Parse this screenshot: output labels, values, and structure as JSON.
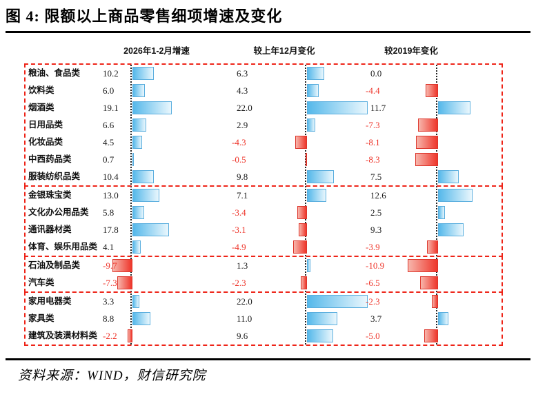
{
  "title": "图 4: 限额以上商品零售细项增速及变化",
  "source": "资料来源：WIND，财信研究院",
  "chart_data": {
    "type": "bar",
    "orientation": "horizontal",
    "unit": "percent",
    "columns": [
      "2026年1-2月增速",
      "较上年12月变化",
      "较2019年变化"
    ],
    "positive_value_color": "#1a1a1a",
    "negative_value_color": "#ee3328",
    "positive_bar_color": "#55b8ea",
    "negative_bar_color": "#ee352a",
    "frame_color": "#ee2418",
    "axis_at_zero": true,
    "groups": [
      {
        "rows": [
          {
            "label": "粮油、食品类",
            "values": [
              10.2,
              6.3,
              0.0
            ]
          },
          {
            "label": "饮料类",
            "values": [
              6.0,
              4.3,
              -4.4
            ]
          },
          {
            "label": "烟酒类",
            "values": [
              19.1,
              22.0,
              11.7
            ]
          },
          {
            "label": "日用品类",
            "values": [
              6.6,
              2.9,
              -7.3
            ]
          },
          {
            "label": "化妆品类",
            "values": [
              4.5,
              -4.3,
              -8.1
            ]
          },
          {
            "label": "中西药品类",
            "values": [
              0.7,
              -0.5,
              -8.3
            ]
          },
          {
            "label": "服装纺织品类",
            "values": [
              10.4,
              9.8,
              7.5
            ]
          }
        ]
      },
      {
        "rows": [
          {
            "label": "金银珠宝类",
            "values": [
              13.0,
              7.1,
              12.6
            ]
          },
          {
            "label": "文化办公用品类",
            "values": [
              5.8,
              -3.4,
              2.5
            ]
          },
          {
            "label": "通讯器材类",
            "values": [
              17.8,
              -3.1,
              9.3
            ]
          },
          {
            "label": "体育、娱乐用品类",
            "values": [
              4.1,
              -4.9,
              -3.9
            ]
          }
        ]
      },
      {
        "rows": [
          {
            "label": "石油及制品类",
            "values": [
              -9.7,
              1.3,
              -10.9
            ]
          },
          {
            "label": "汽车类",
            "values": [
              -7.3,
              -2.3,
              -6.5
            ]
          }
        ]
      },
      {
        "rows": [
          {
            "label": "家用电器类",
            "values": [
              3.3,
              22.0,
              -2.3
            ]
          },
          {
            "label": "家具类",
            "values": [
              8.8,
              11.0,
              3.7
            ]
          },
          {
            "label": "建筑及装潢材料类",
            "values": [
              -2.2,
              9.6,
              -5.0
            ]
          }
        ]
      }
    ]
  }
}
